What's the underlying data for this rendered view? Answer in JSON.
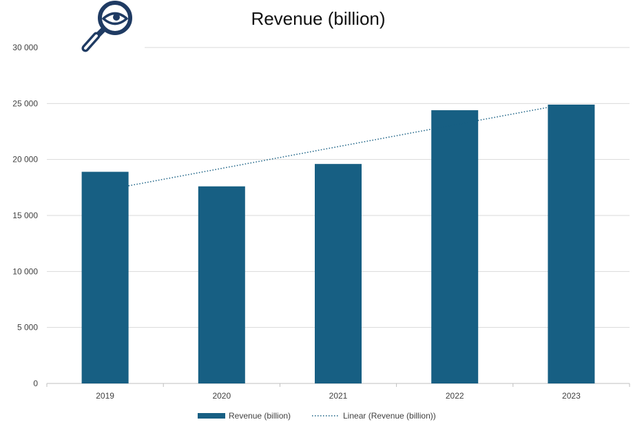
{
  "chart_data": {
    "type": "bar",
    "title": "Revenue (billion)",
    "xlabel": "",
    "ylabel": "",
    "categories": [
      "2019",
      "2020",
      "2021",
      "2022",
      "2023"
    ],
    "series": [
      {
        "name": "Revenue (billion)",
        "values": [
          18900,
          17600,
          19600,
          24400,
          24900
        ]
      }
    ],
    "trendline": {
      "name": "Linear (Revenue (billion))",
      "type": "linear",
      "start": 17650,
      "end": 24650
    },
    "ylim": [
      0,
      30000
    ],
    "yticks": [
      0,
      5000,
      10000,
      15000,
      20000,
      25000,
      30000
    ],
    "ytick_labels": [
      "0",
      "5 000",
      "10 000",
      "15 000",
      "20 000",
      "25 000",
      "30 000"
    ],
    "grid": true,
    "legend": "bottom",
    "colors": {
      "bar": "#175f83",
      "trend": "#175f83",
      "grid": "#d9d9d9",
      "axis": "#bfbfbf",
      "icon": "#1f3b63"
    }
  },
  "icon": {
    "name": "magnifier-eye-icon"
  }
}
